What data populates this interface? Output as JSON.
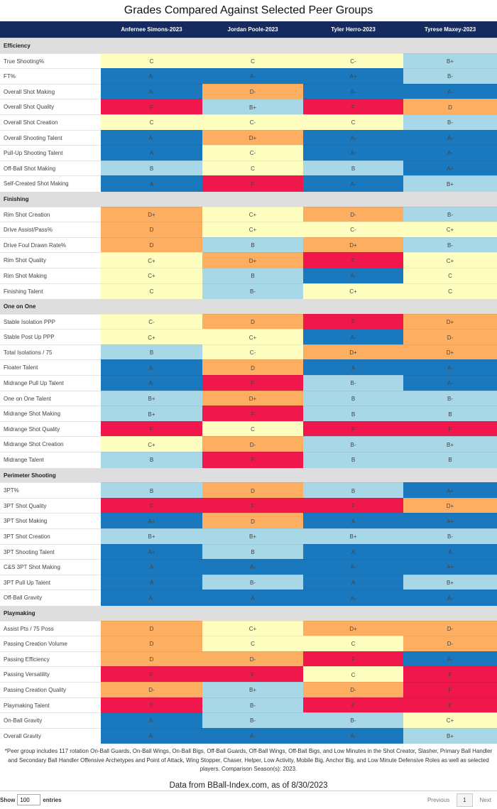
{
  "title": "Grades Compared Against Selected Peer Groups",
  "columns": [
    "Anfernee Simons-2023",
    "Jordan Poole-2023",
    "Tyler Herro-2023",
    "Tyrese Maxey-2023"
  ],
  "grade_colors": {
    "A": "#1a78be",
    "B": "#a8d8e8",
    "C": "#fefec0",
    "D": "#fdae61",
    "F": "#ef174c"
  },
  "sections": [
    {
      "name": "Efficiency",
      "rows": [
        [
          "True Shooting%",
          "C",
          "C",
          "C-",
          "B+"
        ],
        [
          "FT%",
          "A-",
          "A-",
          "A+",
          "B-"
        ],
        [
          "Overall Shot Making",
          "A-",
          "D-",
          "A-",
          "A-"
        ],
        [
          "Overall Shot Quality",
          "F",
          "B+",
          "F",
          "D"
        ],
        [
          "Overall Shot Creation",
          "C",
          "C-",
          "C",
          "B-"
        ],
        [
          "Overall Shooting Talent",
          "A-",
          "D+",
          "A-",
          "A-"
        ],
        [
          "Pull-Up Shooting Talent",
          "A",
          "C-",
          "A-",
          "A-"
        ],
        [
          "Off-Ball Shot Making",
          "B",
          "C",
          "B",
          "A+"
        ],
        [
          "Self-Created Shot Making",
          "A",
          "F",
          "A-",
          "B+"
        ]
      ]
    },
    {
      "name": "Finishing",
      "rows": [
        [
          "Rim Shot Creation",
          "D+",
          "C+",
          "D-",
          "B-"
        ],
        [
          "Drive Assist/Pass%",
          "D",
          "C+",
          "C-",
          "C+"
        ],
        [
          "Drive Foul Drawn Rate%",
          "D",
          "B",
          "D+",
          "B-"
        ],
        [
          "Rim Shot Quality",
          "C+",
          "D+",
          "F",
          "C+"
        ],
        [
          "Rim Shot Making",
          "C+",
          "B",
          "A-",
          "C"
        ],
        [
          "Finishing Talent",
          "C",
          "B-",
          "C+",
          "C"
        ]
      ]
    },
    {
      "name": "One on One",
      "rows": [
        [
          "Stable Isolation PPP",
          "C-",
          "D",
          "F",
          "D+"
        ],
        [
          "Stable Post Up PPP",
          "C+",
          "C+",
          "A-",
          "D-"
        ],
        [
          "Total Isolations / 75",
          "B",
          "C-",
          "D+",
          "D+"
        ],
        [
          "Floater Talent",
          "A-",
          "D",
          "A",
          "A-"
        ],
        [
          "Midrange Pull Up Talent",
          "A-",
          "F",
          "B-",
          "A-"
        ],
        [
          "One on One Talent",
          "B+",
          "D+",
          "B",
          "B-"
        ],
        [
          "Midrange Shot Making",
          "B+",
          "F",
          "B",
          "B"
        ],
        [
          "Midrange Shot Quality",
          "F",
          "C",
          "F",
          "F"
        ],
        [
          "Midrange Shot Creation",
          "C+",
          "D-",
          "B-",
          "B+"
        ],
        [
          "Midrange Talent",
          "B",
          "F",
          "B",
          "B"
        ]
      ]
    },
    {
      "name": "Perimeter Shooting",
      "rows": [
        [
          "3PT%",
          "B",
          "D",
          "B",
          "A+"
        ],
        [
          "3PT Shot Quality",
          "F",
          "F",
          "F",
          "D+"
        ],
        [
          "3PT Shot Making",
          "A+",
          "D",
          "A",
          "A+"
        ],
        [
          "3PT Shot Creation",
          "B+",
          "B+",
          "B+",
          "B-"
        ],
        [
          "3PT Shooting Talent",
          "A+",
          "B",
          "A",
          "A"
        ],
        [
          "C&S 3PT Shot Making",
          "A",
          "A-",
          "A-",
          "A+"
        ],
        [
          "3PT Pull Up Talent",
          "A",
          "B-",
          "A",
          "B+"
        ],
        [
          "Off-Ball Gravity",
          "A-",
          "A",
          "A-",
          "A-"
        ]
      ]
    },
    {
      "name": "Playmaking",
      "rows": [
        [
          "Assist Pts / 75 Poss",
          "D",
          "C+",
          "D+",
          "D-"
        ],
        [
          "Passing Creation Volume",
          "D",
          "C",
          "C",
          "D-"
        ],
        [
          "Passing Efficiency",
          "D",
          "D-",
          "F",
          "A-"
        ],
        [
          "Passing Versatility",
          "F",
          "F",
          "C",
          "F"
        ],
        [
          "Passing Creation Quality",
          "D-",
          "B+",
          "D-",
          "F"
        ],
        [
          "Playmaking Talent",
          "F",
          "B-",
          "F",
          "F"
        ],
        [
          "On-Ball Gravity",
          "A-",
          "B-",
          "B-",
          "C+"
        ],
        [
          "Overall Gravity",
          "A-",
          "A-",
          "A-",
          "B+"
        ]
      ]
    }
  ],
  "footnote": "*Peer group includes 117 rotation On-Ball Guards, On-Ball Wings, On-Ball Bigs, Off-Ball Guards, Off-Ball Wings, Off-Ball Bigs, and Low Minutes in the Shot Creator, Slasher, Primary Ball Handler and Secondary Ball Handler Offensive Archetypes and Point of Attack, Wing Stopper, Chaser, Helper, Low Activity, Mobile Big, Anchor Big, and Low Minute Defensive Roles as well as selected players. Comparison Season(s): 2023.",
  "source": "Data from BBall-Index.com, as of 8/30/2023",
  "footer": {
    "show_label": "Show",
    "entries_value": "100",
    "entries_label": "entries",
    "previous": "Previous",
    "page": "1",
    "next": "Next"
  }
}
